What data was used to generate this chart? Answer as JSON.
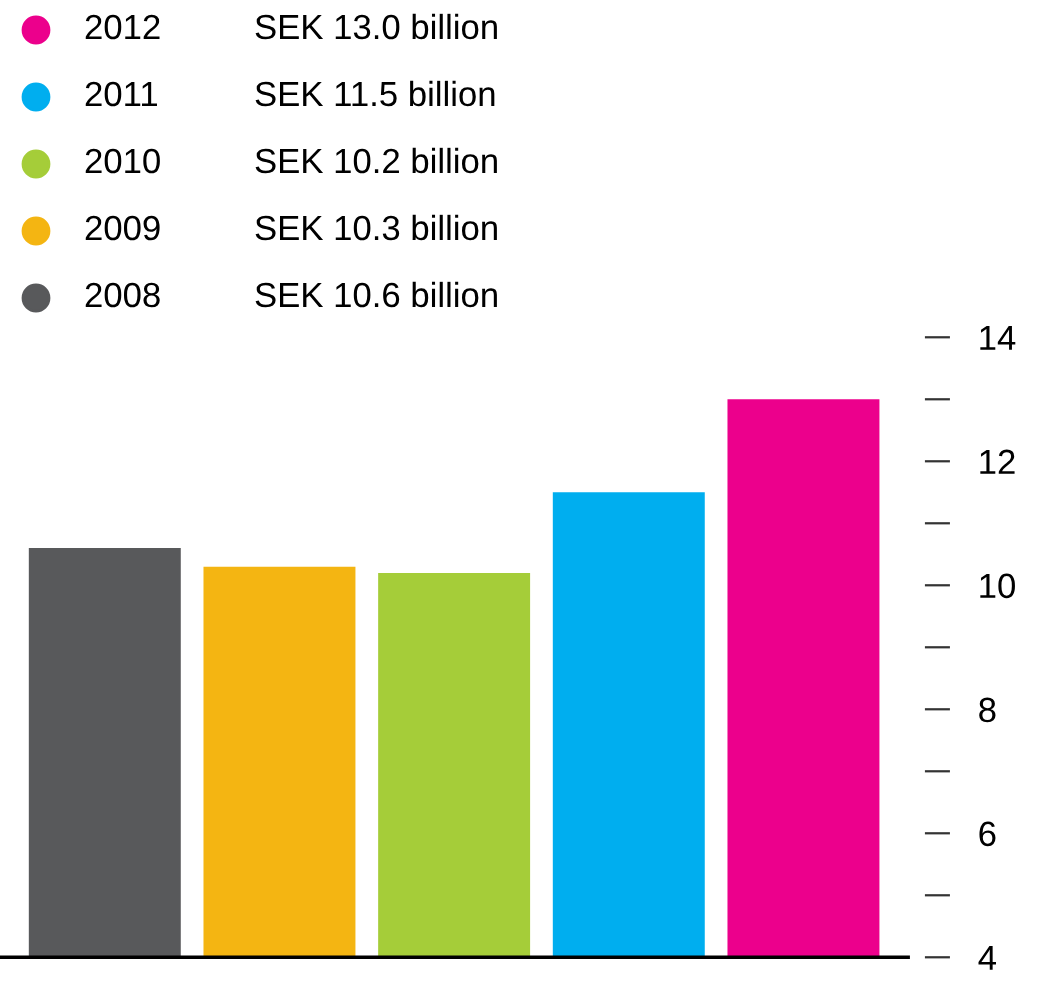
{
  "chart_data": {
    "type": "bar",
    "categories": [
      null,
      null,
      null,
      null,
      null
    ],
    "series": [
      {
        "name": "2008",
        "color": "#58595b",
        "values": [
          10.6,
          null,
          null,
          null,
          null
        ]
      },
      {
        "name": "2009",
        "color": "#f4b512",
        "values": [
          null,
          10.3,
          null,
          null,
          null
        ]
      },
      {
        "name": "2010",
        "color": "#a5cd39",
        "values": [
          null,
          null,
          10.2,
          null,
          null
        ]
      },
      {
        "name": "2011",
        "color": "#00aeef",
        "values": [
          null,
          null,
          null,
          11.5,
          null
        ]
      },
      {
        "name": "2012",
        "color": "#ec008c",
        "values": [
          null,
          null,
          null,
          null,
          13.0
        ]
      }
    ],
    "annotations": [
      "SEK 10.6 billion",
      "SEK 10.3 billion",
      "SEK 10.2 billion",
      "SEK 11.5 billion",
      "SEK 13.0 billion"
    ],
    "ylim": [
      4,
      14
    ],
    "yticks": [
      4,
      {
        "value": 5,
        "label": null
      },
      6,
      {
        "value": 7,
        "label": null
      },
      8,
      {
        "value": 9,
        "label": null
      },
      10,
      {
        "value": 11,
        "label": null
      },
      12,
      {
        "value": 13,
        "label": null
      },
      14
    ],
    "grid": false,
    "legend": "top left"
  }
}
